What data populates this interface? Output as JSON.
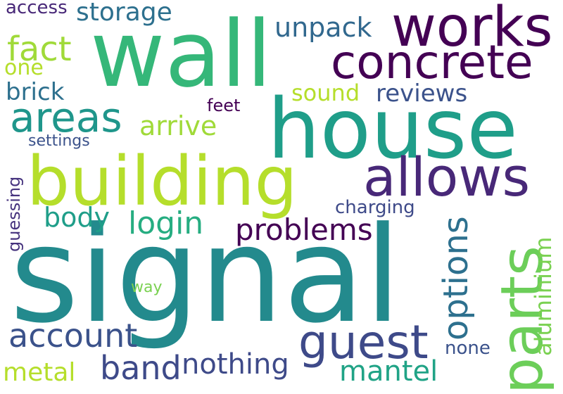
{
  "words": {
    "signal": {
      "text": "signal",
      "color": "#238A8D"
    },
    "house": {
      "text": "house",
      "color": "#1F9E89"
    },
    "wall": {
      "text": "wall",
      "color": "#35B779"
    },
    "building": {
      "text": "building",
      "color": "#B5DE2B"
    },
    "works": {
      "text": "works",
      "color": "#440154"
    },
    "concrete": {
      "text": "concrete",
      "color": "#440154"
    },
    "allows": {
      "text": "allows",
      "color": "#482878"
    },
    "guest": {
      "text": "guest",
      "color": "#3E4A89"
    },
    "parts": {
      "text": "parts",
      "color": "#6CCE59"
    },
    "areas": {
      "text": "areas",
      "color": "#1F968B"
    },
    "account": {
      "text": "account",
      "color": "#3B528B"
    },
    "band": {
      "text": "band",
      "color": "#3E4A89"
    },
    "problems": {
      "text": "problems",
      "color": "#440154"
    },
    "login": {
      "text": "login",
      "color": "#26AD81"
    },
    "nothing": {
      "text": "nothing",
      "color": "#3E4A89"
    },
    "mantel": {
      "text": "mantel",
      "color": "#20A386"
    },
    "options": {
      "text": "options",
      "color": "#2D708E"
    },
    "arrive": {
      "text": "arrive",
      "color": "#A0DA39"
    },
    "storage": {
      "text": "storage",
      "color": "#2D708E"
    },
    "fact": {
      "text": "fact",
      "color": "#A0DA39"
    },
    "unpack": {
      "text": "unpack",
      "color": "#31688E"
    },
    "reviews": {
      "text": "reviews",
      "color": "#3B528B"
    },
    "sound": {
      "text": "sound",
      "color": "#B5DE2B"
    },
    "brick": {
      "text": "brick",
      "color": "#2D708E"
    },
    "body": {
      "text": "body",
      "color": "#1F9E89"
    },
    "metal": {
      "text": "metal",
      "color": "#B5DE2B"
    },
    "aluminium": {
      "text": "aluminium",
      "color": "#7AD151"
    },
    "one": {
      "text": "one",
      "color": "#B5DE2B"
    },
    "feet": {
      "text": "feet",
      "color": "#440154"
    },
    "settings": {
      "text": "settings",
      "color": "#3B528B"
    },
    "charging": {
      "text": "charging",
      "color": "#3E4A89"
    },
    "access": {
      "text": "access",
      "color": "#482878"
    },
    "none": {
      "text": "none",
      "color": "#3B528B"
    },
    "guessing": {
      "text": "guessing",
      "color": "#46337E"
    },
    "way": {
      "text": "way",
      "color": "#7AD151"
    }
  }
}
